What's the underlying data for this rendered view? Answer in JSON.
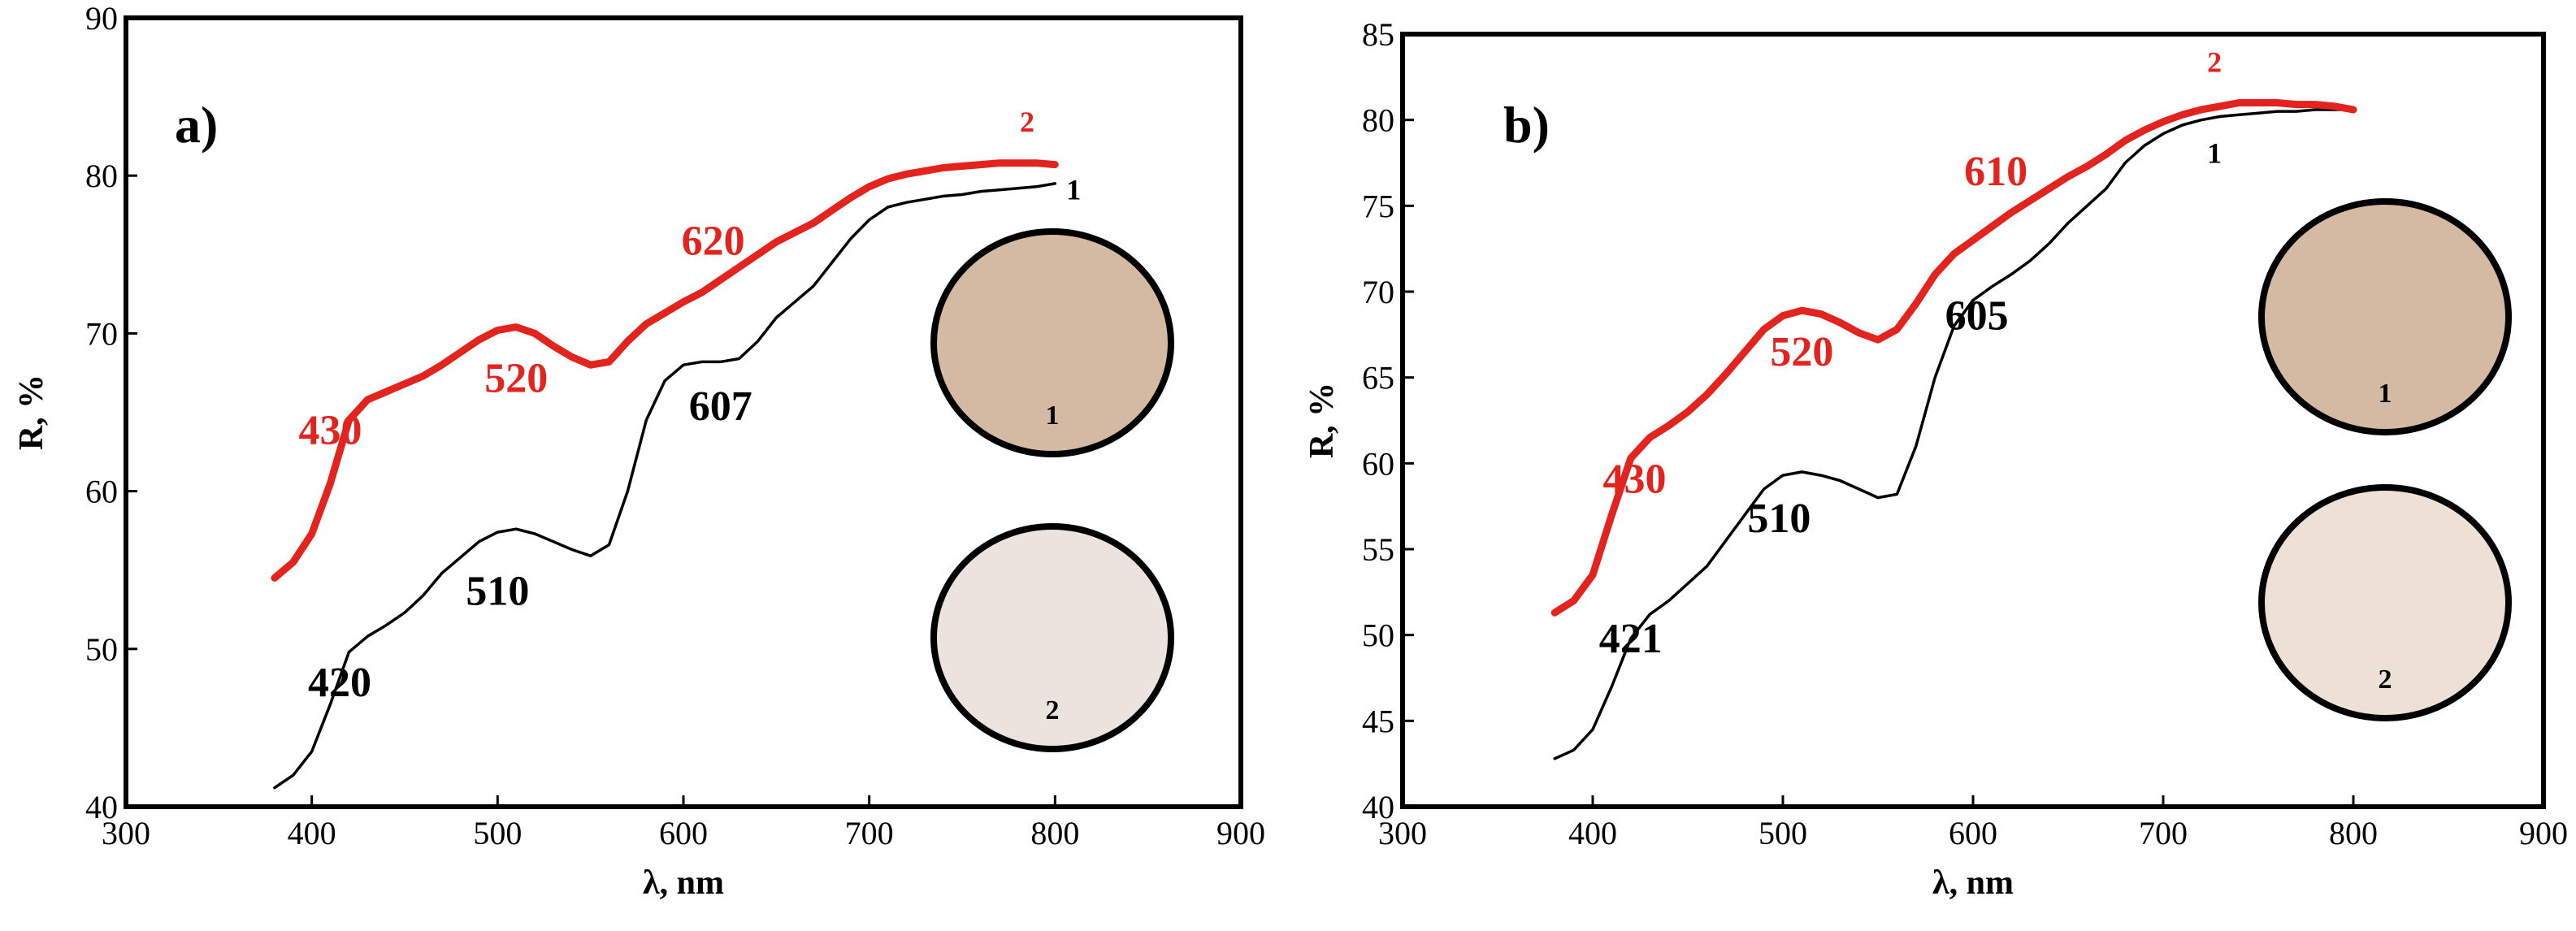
{
  "chart_data": [
    {
      "type": "line",
      "panel_label": "a)",
      "xlabel": "λ, nm",
      "ylabel": "R, %",
      "xlim": [
        300,
        900
      ],
      "ylim": [
        40,
        90
      ],
      "xticks": [
        300,
        400,
        500,
        600,
        700,
        800,
        900
      ],
      "yticks": [
        40,
        50,
        60,
        70,
        80,
        90
      ],
      "grid": false,
      "series": [
        {
          "name": "1",
          "color": "#000000",
          "x": [
            380,
            390,
            400,
            410,
            420,
            430,
            440,
            450,
            460,
            470,
            480,
            490,
            500,
            510,
            520,
            530,
            540,
            550,
            560,
            570,
            580,
            590,
            600,
            610,
            620,
            630,
            640,
            650,
            660,
            670,
            680,
            690,
            700,
            710,
            720,
            730,
            740,
            750,
            760,
            770,
            780,
            790,
            800
          ],
          "values": [
            41.2,
            42.0,
            43.5,
            46.5,
            49.8,
            50.8,
            51.5,
            52.3,
            53.4,
            54.8,
            55.8,
            56.8,
            57.4,
            57.6,
            57.3,
            56.8,
            56.3,
            55.9,
            56.6,
            60.0,
            64.5,
            67.0,
            68.0,
            68.2,
            68.2,
            68.4,
            69.5,
            71.0,
            72.0,
            73.0,
            74.5,
            76.0,
            77.2,
            78.0,
            78.3,
            78.5,
            78.7,
            78.8,
            79.0,
            79.1,
            79.2,
            79.3,
            79.5
          ]
        },
        {
          "name": "2",
          "color": "#e3241e",
          "x": [
            380,
            390,
            400,
            410,
            420,
            430,
            440,
            450,
            460,
            470,
            480,
            490,
            500,
            510,
            520,
            530,
            540,
            550,
            560,
            570,
            580,
            590,
            600,
            610,
            620,
            630,
            640,
            650,
            660,
            670,
            680,
            690,
            700,
            710,
            720,
            730,
            740,
            750,
            760,
            770,
            780,
            790,
            800
          ],
          "values": [
            54.5,
            55.5,
            57.3,
            60.5,
            64.5,
            65.8,
            66.3,
            66.8,
            67.3,
            68.0,
            68.8,
            69.6,
            70.2,
            70.4,
            70.0,
            69.2,
            68.5,
            68.0,
            68.2,
            69.5,
            70.6,
            71.3,
            72.0,
            72.6,
            73.4,
            74.2,
            75.0,
            75.8,
            76.4,
            77.0,
            77.8,
            78.6,
            79.3,
            79.8,
            80.1,
            80.3,
            80.5,
            80.6,
            80.7,
            80.8,
            80.8,
            80.8,
            80.7
          ]
        }
      ],
      "annotations": [
        {
          "text": "430",
          "series": "2",
          "x": 410,
          "y": 63.0
        },
        {
          "text": "520",
          "series": "2",
          "x": 510,
          "y": 66.3
        },
        {
          "text": "620",
          "series": "2",
          "x": 616,
          "y": 75.0
        },
        {
          "text": "2",
          "series": "2",
          "x": 785,
          "y": 82.8
        },
        {
          "text": "607",
          "series": "1",
          "x": 620,
          "y": 64.5
        },
        {
          "text": "510",
          "series": "1",
          "x": 500,
          "y": 52.8
        },
        {
          "text": "420",
          "series": "1",
          "x": 415,
          "y": 47.0
        },
        {
          "text": "1",
          "series": "1",
          "x": 810,
          "y": 78.5
        }
      ],
      "samples": [
        {
          "label": "1",
          "color": "#d4b9a3"
        },
        {
          "label": "2",
          "color": "#ece3de"
        }
      ]
    },
    {
      "type": "line",
      "panel_label": "b)",
      "xlabel": "λ, nm",
      "ylabel": "R, %",
      "xlim": [
        300,
        900
      ],
      "ylim": [
        40,
        85
      ],
      "xticks": [
        300,
        400,
        500,
        600,
        700,
        800,
        900
      ],
      "yticks": [
        40,
        45,
        50,
        55,
        60,
        65,
        70,
        75,
        80,
        85
      ],
      "grid": false,
      "series": [
        {
          "name": "1",
          "color": "#000000",
          "x": [
            380,
            390,
            400,
            410,
            420,
            430,
            440,
            450,
            460,
            470,
            480,
            490,
            500,
            510,
            520,
            530,
            540,
            550,
            560,
            570,
            580,
            590,
            600,
            610,
            620,
            630,
            640,
            650,
            660,
            670,
            680,
            690,
            700,
            710,
            720,
            730,
            740,
            750,
            760,
            770,
            780,
            790,
            800
          ],
          "values": [
            42.8,
            43.3,
            44.5,
            47.0,
            49.8,
            51.2,
            52.0,
            53.0,
            54.0,
            55.5,
            57.0,
            58.5,
            59.3,
            59.5,
            59.3,
            59.0,
            58.5,
            58.0,
            58.2,
            61.0,
            65.0,
            68.0,
            69.5,
            70.3,
            71.0,
            71.8,
            72.8,
            74.0,
            75.0,
            76.0,
            77.5,
            78.5,
            79.2,
            79.7,
            80.0,
            80.2,
            80.3,
            80.4,
            80.5,
            80.5,
            80.6,
            80.6,
            80.6
          ]
        },
        {
          "name": "2",
          "color": "#e3241e",
          "x": [
            380,
            390,
            400,
            410,
            420,
            430,
            440,
            450,
            460,
            470,
            480,
            490,
            500,
            510,
            520,
            530,
            540,
            550,
            560,
            570,
            580,
            590,
            600,
            610,
            620,
            630,
            640,
            650,
            660,
            670,
            680,
            690,
            700,
            710,
            720,
            730,
            740,
            750,
            760,
            770,
            780,
            790,
            800
          ],
          "values": [
            51.3,
            52.0,
            53.5,
            57.0,
            60.3,
            61.5,
            62.2,
            63.0,
            64.0,
            65.2,
            66.5,
            67.8,
            68.6,
            68.9,
            68.7,
            68.2,
            67.6,
            67.2,
            67.8,
            69.3,
            71.0,
            72.2,
            73.0,
            73.8,
            74.6,
            75.3,
            76.0,
            76.7,
            77.3,
            78.0,
            78.8,
            79.4,
            79.9,
            80.3,
            80.6,
            80.8,
            81.0,
            81.0,
            81.0,
            80.9,
            80.9,
            80.8,
            80.6
          ]
        }
      ],
      "annotations": [
        {
          "text": "430",
          "series": "2",
          "x": 422,
          "y": 58.3
        },
        {
          "text": "520",
          "series": "2",
          "x": 510,
          "y": 65.7
        },
        {
          "text": "610",
          "series": "2",
          "x": 612,
          "y": 76.2
        },
        {
          "text": "2",
          "series": "2",
          "x": 727,
          "y": 82.8
        },
        {
          "text": "605",
          "series": "1",
          "x": 602,
          "y": 67.8
        },
        {
          "text": "510",
          "series": "1",
          "x": 498,
          "y": 56.0
        },
        {
          "text": "421",
          "series": "1",
          "x": 420,
          "y": 49.0
        },
        {
          "text": "1",
          "series": "1",
          "x": 727,
          "y": 77.5
        }
      ],
      "samples": [
        {
          "label": "1",
          "color": "#d4b9a3"
        },
        {
          "label": "2",
          "color": "#ede0d5"
        }
      ]
    }
  ]
}
